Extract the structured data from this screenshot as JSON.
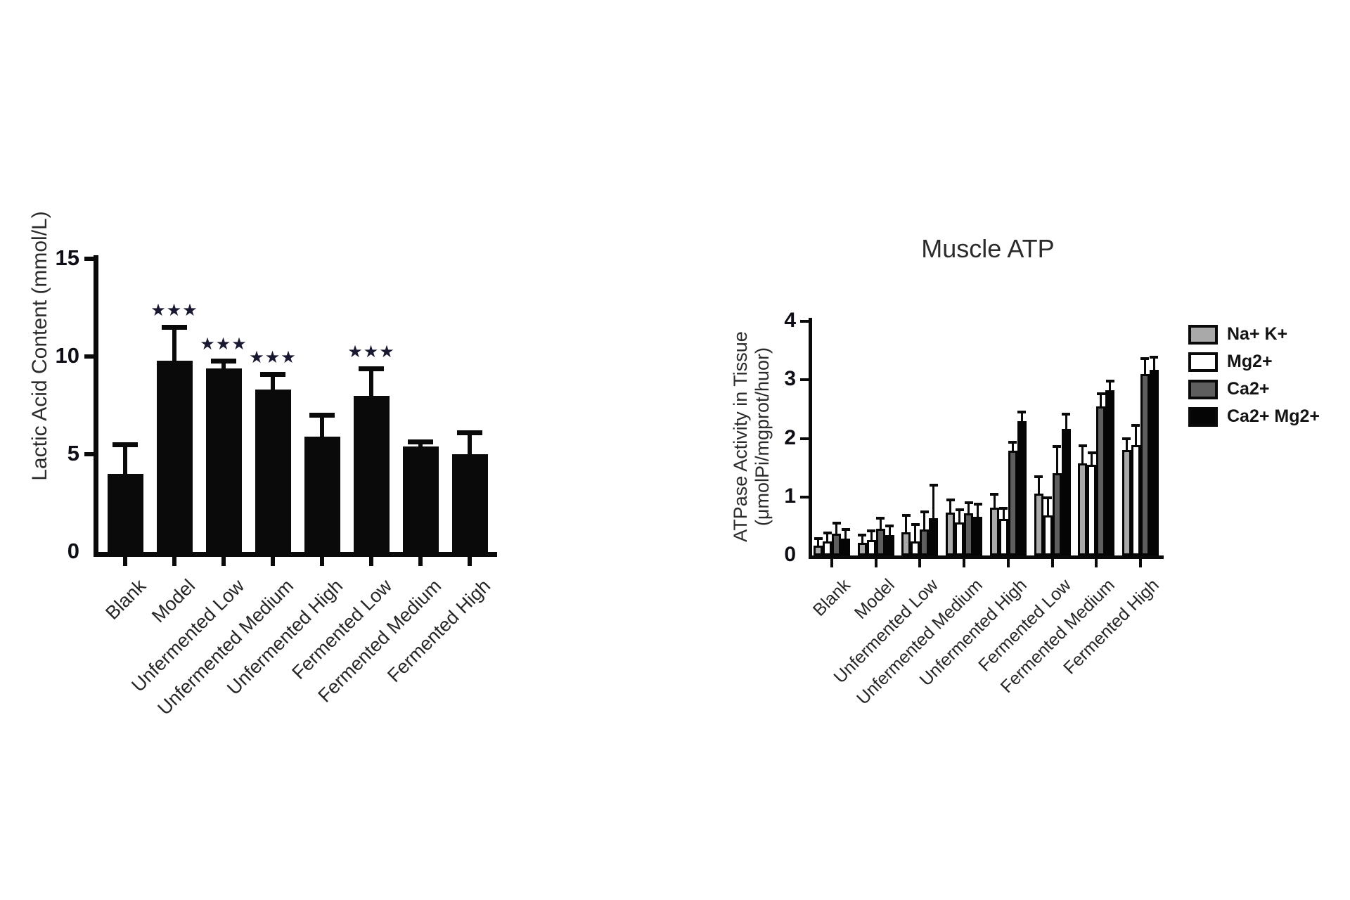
{
  "figure": {
    "description_visible_text_only": "two bar charts",
    "left_chart": {
      "chart_data": {
        "type": "bar",
        "title": "",
        "ylabel": "Lactic Acid Content (mmol/L)",
        "xlabel": "",
        "ylim": [
          0,
          15
        ],
        "yticks": [
          0,
          5,
          10,
          15
        ],
        "grid": false,
        "categories": [
          "Blank",
          "Model",
          "Unfermented Low",
          "Unfermented Medium",
          "Unfermented High",
          "Fermented Low",
          "Fermented Medium",
          "Fermented High"
        ],
        "values": [
          4.0,
          9.8,
          9.4,
          8.3,
          5.9,
          8.0,
          5.4,
          5.0
        ],
        "error_bar_tops": [
          5.5,
          11.5,
          9.8,
          9.1,
          7.0,
          9.4,
          5.65,
          6.1
        ],
        "significance": [
          "",
          "***",
          "***",
          "***",
          "",
          "***",
          "",
          ""
        ],
        "bar_color": "#0a0a0a"
      }
    },
    "right_chart": {
      "chart_data": {
        "type": "grouped-bar",
        "title": "Muscle ATP",
        "ylabel_line1": "ATPase Activity in Tissue",
        "ylabel_line2": "(μmolPi/mgprot/huor)",
        "xlabel": "",
        "ylim": [
          0,
          4
        ],
        "yticks": [
          0,
          1,
          2,
          3,
          4
        ],
        "grid": false,
        "legend_position": "right",
        "categories": [
          "Blank",
          "Model",
          "Unfermented Low",
          "Unfermented Medium",
          "Unfermented High",
          "Fermented Low",
          "Fermented Medium",
          "Fermented High"
        ],
        "series": [
          {
            "name": "Na+ K+",
            "color": "#a9a9a9",
            "values": [
              0.17,
              0.22,
              0.4,
              0.73,
              0.82,
              1.06,
              1.57,
              1.8
            ],
            "error_bar_tops": [
              0.29,
              0.35,
              0.68,
              0.95,
              1.05,
              1.35,
              1.87,
              2.0
            ]
          },
          {
            "name": "Mg2+",
            "color": "#ffffff",
            "values": [
              0.24,
              0.26,
              0.24,
              0.56,
              0.62,
              0.69,
              1.55,
              1.88
            ],
            "error_bar_tops": [
              0.38,
              0.42,
              0.53,
              0.78,
              0.8,
              0.98,
              1.75,
              2.22
            ]
          },
          {
            "name": "Ca2+",
            "color": "#5e5e5e",
            "values": [
              0.37,
              0.46,
              0.44,
              0.72,
              1.79,
              1.41,
              2.55,
              3.1
            ],
            "error_bar_tops": [
              0.55,
              0.64,
              0.74,
              0.9,
              1.93,
              1.86,
              2.76,
              3.36
            ]
          },
          {
            "name": "Ca2+ Mg2+",
            "color": "#050505",
            "values": [
              0.29,
              0.35,
              0.64,
              0.66,
              2.29,
              2.16,
              2.82,
              3.17
            ],
            "error_bar_tops": [
              0.44,
              0.5,
              1.2,
              0.88,
              2.45,
              2.41,
              2.98,
              3.39
            ]
          }
        ]
      }
    }
  }
}
